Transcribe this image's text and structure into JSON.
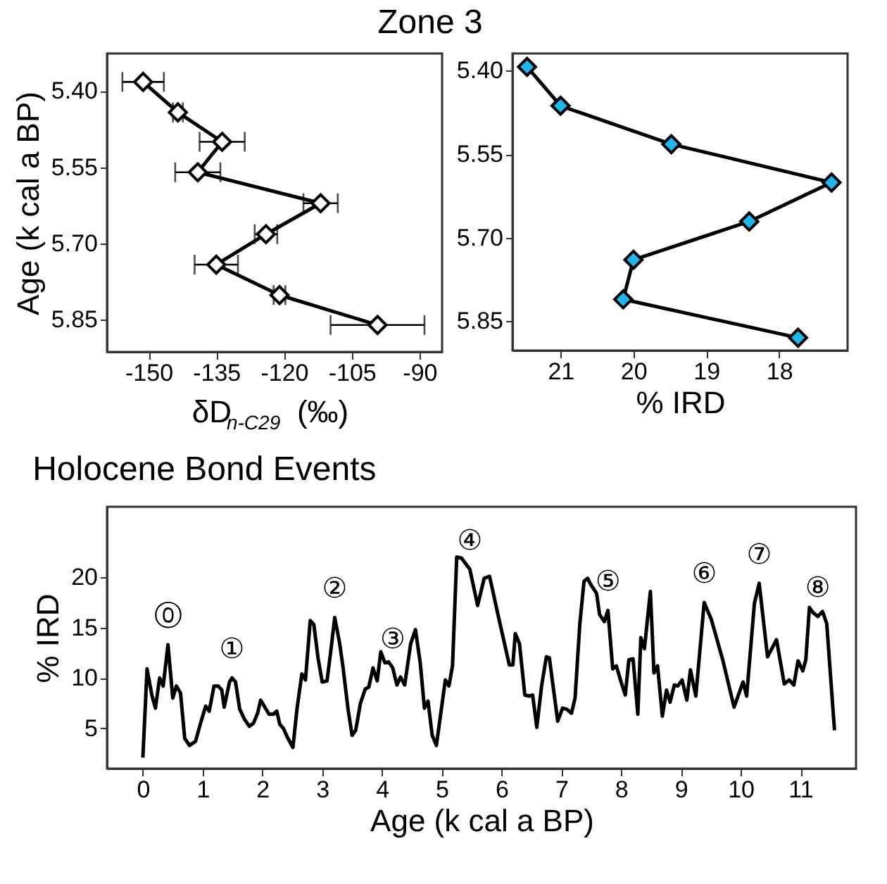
{
  "chart_data": [
    {
      "type": "line",
      "title": "Zone 3",
      "xlabel": "δD$_{n-C29}$ (‰)",
      "ylabel": "Age (k cal a BP)",
      "marker": "diamond",
      "color": "#000000",
      "x": [
        -151.2,
        -143.5,
        -133.7,
        -139.1,
        -111.9,
        -124.0,
        -135.0,
        -121.0,
        -99.3
      ],
      "values": [
        5.382,
        5.442,
        5.5,
        5.56,
        5.621,
        5.682,
        5.742,
        5.802,
        5.861
      ],
      "xerrors": [
        4.6,
        1.1,
        5.0,
        5.0,
        3.8,
        2.5,
        4.8,
        1.3,
        10.4
      ],
      "colors": [
        "#ffffff",
        "#ffffff",
        "#ffffff",
        "#ffffff",
        "#ffffff",
        "#ffffff",
        "#ffffff",
        "#ffffff",
        "#ffffff"
      ],
      "xlim": [
        -159.2,
        -85.0
      ],
      "xticks": [
        -150,
        -135,
        -120,
        -105,
        -90
      ],
      "ylim": [
        5.914,
        5.326
      ],
      "yticks": [
        {
          "value": 5.4,
          "label": "5.40"
        },
        {
          "value": 5.55,
          "label": "5.55"
        },
        {
          "value": 5.7,
          "label": "5.70"
        },
        {
          "value": 5.85,
          "label": "5.85"
        }
      ],
      "grid": false
    },
    {
      "type": "line",
      "xlabel": "% IRD",
      "marker": "diamond",
      "color": "#000000",
      "x": [
        21.46,
        21.0,
        19.48,
        17.28,
        18.41,
        20.0,
        20.14,
        17.74
      ],
      "values": [
        5.393,
        5.463,
        5.532,
        5.601,
        5.671,
        5.74,
        5.811,
        5.88
      ],
      "colors": [
        "#1eb6ec",
        "#1eb6ec",
        "#1eb6ec",
        "#1eb6ec",
        "#1eb6ec",
        "#1eb6ec",
        "#1eb6ec",
        "#1eb6ec"
      ],
      "xlim": [
        21.66,
        17.06
      ],
      "xticks": [
        21,
        20,
        19,
        18
      ],
      "ylim": [
        5.903,
        5.369
      ],
      "yticks": [
        {
          "value": 5.4,
          "label": "5.40"
        },
        {
          "value": 5.55,
          "label": "5.55"
        },
        {
          "value": 5.7,
          "label": "5.70"
        },
        {
          "value": 5.85,
          "label": "5.85"
        }
      ],
      "grid": false
    },
    {
      "type": "line",
      "title": "Holocene Bond Events",
      "xlabel": "Age (k cal a BP)",
      "ylabel": "% IRD",
      "marker": "none",
      "color": "#000000",
      "x": [
        0,
        0.07,
        0.15,
        0.21,
        0.28,
        0.34,
        0.42,
        0.5,
        0.56,
        0.63,
        0.7,
        0.78,
        0.88,
        0.97,
        1.05,
        1.11,
        1.19,
        1.26,
        1.32,
        1.36,
        1.45,
        1.49,
        1.55,
        1.62,
        1.7,
        1.78,
        1.85,
        1.92,
        1.97,
        2.03,
        2.11,
        2.18,
        2.24,
        2.29,
        2.35,
        2.41,
        2.51,
        2.58,
        2.66,
        2.72,
        2.8,
        2.86,
        2.93,
        3.0,
        3.08,
        3.14,
        3.21,
        3.29,
        3.35,
        3.43,
        3.5,
        3.56,
        3.64,
        3.72,
        3.78,
        3.85,
        3.92,
        3.98,
        4.05,
        4.11,
        4.18,
        4.25,
        4.31,
        4.38,
        4.48,
        4.56,
        4.64,
        4.71,
        4.77,
        4.84,
        4.91,
        5.06,
        5.12,
        5.18,
        5.25,
        5.33,
        5.47,
        5.6,
        5.71,
        5.8,
        5.94,
        6.13,
        6.19,
        6.23,
        6.3,
        6.39,
        6.46,
        6.52,
        6.59,
        6.67,
        6.75,
        6.8,
        6.94,
        7.02,
        7.09,
        7.17,
        7.23,
        7.31,
        7.38,
        7.44,
        7.49,
        7.59,
        7.64,
        7.72,
        7.78,
        7.86,
        7.92,
        8.0,
        8.07,
        8.13,
        8.2,
        8.28,
        8.33,
        8.39,
        8.49,
        8.55,
        8.61,
        8.69,
        8.76,
        8.82,
        8.89,
        8.95,
        9.02,
        9.1,
        9.16,
        9.25,
        9.39,
        9.51,
        9.7,
        9.89,
        10.04,
        10.1,
        10.23,
        10.31,
        10.45,
        10.6,
        10.73,
        10.81,
        10.89,
        10.96,
        11.04,
        11.09,
        11.15,
        11.21,
        11.29,
        11.37,
        11.44,
        11.57
      ],
      "values": [
        2.1,
        10.9,
        8.3,
        7.0,
        10.0,
        9.2,
        13.3,
        8.0,
        9.2,
        8.5,
        4.0,
        3.3,
        3.7,
        5.6,
        7.2,
        6.7,
        9.2,
        9.2,
        8.8,
        7.1,
        9.6,
        10.0,
        9.6,
        6.9,
        5.9,
        5.2,
        5.5,
        6.5,
        7.8,
        7.2,
        6.4,
        6.4,
        6.7,
        5.4,
        5.0,
        4.2,
        3.1,
        7.0,
        10.4,
        9.8,
        15.7,
        15.3,
        12.0,
        9.6,
        9.7,
        12.5,
        16.0,
        13.5,
        11.0,
        7.0,
        4.3,
        4.8,
        7.5,
        8.9,
        9.1,
        11.0,
        9.7,
        12.6,
        11.5,
        11.6,
        11.0,
        9.3,
        10.1,
        9.3,
        13.4,
        14.8,
        11.5,
        7.0,
        7.7,
        4.3,
        3.3,
        9.8,
        9.2,
        11.2,
        22.0,
        21.9,
        20.8,
        17.2,
        19.9,
        20.1,
        16.3,
        11.3,
        11.3,
        14.4,
        13.4,
        8.3,
        8.2,
        8.3,
        5.1,
        9.2,
        12.1,
        12.0,
        5.7,
        7.0,
        6.9,
        6.5,
        8.0,
        15.4,
        19.6,
        19.9,
        19.3,
        18.4,
        16.3,
        15.6,
        16.7,
        10.9,
        11.2,
        9.6,
        8.3,
        11.8,
        11.9,
        6.4,
        14.0,
        12.9,
        18.6,
        10.5,
        11.2,
        6.2,
        8.8,
        7.6,
        9.3,
        9.2,
        9.8,
        7.8,
        10.8,
        8.2,
        17.5,
        15.8,
        11.8,
        7.1,
        9.6,
        8.2,
        17.4,
        19.4,
        12.1,
        13.8,
        9.4,
        9.8,
        9.3,
        11.7,
        10.7,
        11.8,
        17.0,
        16.5,
        16.1,
        16.6,
        15.4,
        4.8
      ],
      "xlim": [
        -0.6,
        11.93
      ],
      "xticks": [
        0,
        1,
        2,
        3,
        4,
        5,
        6,
        7,
        8,
        9,
        10,
        11
      ],
      "ylim": [
        1,
        27
      ],
      "yticks": [
        5,
        10,
        15,
        20
      ],
      "grid": false,
      "annotations": [
        {
          "text": "⓪",
          "x": 0.42,
          "y": 13.3
        },
        {
          "text": "①",
          "x": 1.49,
          "y": 10.0
        },
        {
          "text": "②",
          "x": 3.21,
          "y": 16.0
        },
        {
          "text": "③",
          "x": 4.18,
          "y": 11.0
        },
        {
          "text": "④",
          "x": 5.47,
          "y": 20.8
        },
        {
          "text": "⑤",
          "x": 7.78,
          "y": 16.7
        },
        {
          "text": "⑥",
          "x": 9.39,
          "y": 17.5
        },
        {
          "text": "⑦",
          "x": 10.31,
          "y": 19.4
        },
        {
          "text": "⑧",
          "x": 11.29,
          "y": 16.1
        }
      ]
    }
  ]
}
